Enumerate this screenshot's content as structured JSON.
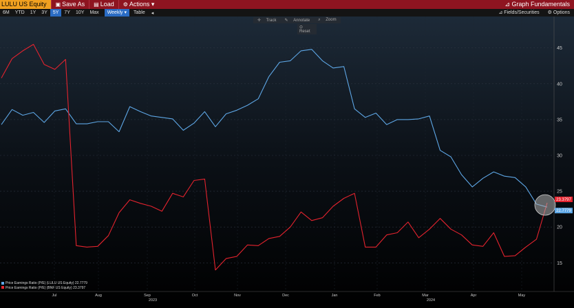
{
  "toolbar": {
    "ticker": "LULU US Equity",
    "save_as": "Save As",
    "load": "Load",
    "actions": "Actions",
    "graph_fundamentals": "Graph Fundamentals"
  },
  "range_bar": {
    "ranges": [
      "6M",
      "YTD",
      "1Y",
      "3Y",
      "5Y",
      "7Y",
      "10Y",
      "Max"
    ],
    "active_range": "5Y",
    "frequency": "Weekly",
    "table": "Table",
    "fields": "Fields/Securities",
    "options": "Options"
  },
  "tools": {
    "track": "Track",
    "annotate": "Annotate",
    "zoom": "Zoom",
    "reset": "Reset"
  },
  "colors": {
    "series_lulu": "#5ea7e6",
    "series_bnf": "#e5232e",
    "toolbar_bg": "#8e1420",
    "ticker_bg": "#f0a020",
    "active_tab": "#2a6cc4"
  },
  "chart_data": {
    "type": "line",
    "ylim": [
      11,
      49
    ],
    "yticks": [
      15,
      20,
      25,
      30,
      35,
      40,
      45
    ],
    "grid": true,
    "x_tick_labels": [
      {
        "label": "Jul",
        "year": ""
      },
      {
        "label": "Aug",
        "year": ""
      },
      {
        "label": "Sep",
        "year": "2023"
      },
      {
        "label": "Oct",
        "year": ""
      },
      {
        "label": "Nov",
        "year": ""
      },
      {
        "label": "Dec",
        "year": ""
      },
      {
        "label": "Jan",
        "year": ""
      },
      {
        "label": "Feb",
        "year": ""
      },
      {
        "label": "Mar",
        "year": "2024"
      },
      {
        "label": "Apr",
        "year": ""
      },
      {
        "label": "May",
        "year": ""
      }
    ],
    "series": [
      {
        "name": "Price Earnings Ratio (P/E) (LULU US Equity)",
        "last_value": "22.7779",
        "color": "#5ea7e6",
        "values": [
          34.3,
          36.4,
          35.6,
          36.0,
          34.6,
          36.2,
          36.5,
          34.4,
          34.4,
          34.7,
          34.7,
          33.3,
          36.8,
          36.1,
          35.5,
          35.3,
          35.1,
          33.5,
          34.5,
          36.1,
          34.0,
          35.8,
          36.3,
          37.0,
          37.9,
          41.0,
          43.0,
          43.2,
          44.6,
          44.8,
          43.2,
          42.2,
          42.4,
          36.5,
          35.3,
          35.9,
          34.3,
          35.0,
          35.0,
          35.1,
          35.5,
          30.7,
          29.8,
          27.3,
          25.6,
          26.8,
          27.7,
          27.1,
          26.9,
          25.6,
          23.2,
          22.78
        ]
      },
      {
        "name": "Price Earnings Ratio (P/E) (BNF US Equity)",
        "last_value": "23.3797",
        "color": "#e5232e",
        "values": [
          40.8,
          43.5,
          44.6,
          45.5,
          42.7,
          42.0,
          43.4,
          17.4,
          17.2,
          17.3,
          18.8,
          22.0,
          23.8,
          23.3,
          22.9,
          22.2,
          24.7,
          24.2,
          26.5,
          26.7,
          14.0,
          15.6,
          15.9,
          17.5,
          17.4,
          18.4,
          18.7,
          20.0,
          22.1,
          20.9,
          21.3,
          22.9,
          24.0,
          24.7,
          17.2,
          17.2,
          18.9,
          19.2,
          20.7,
          18.5,
          19.7,
          21.2,
          19.7,
          18.9,
          17.5,
          17.3,
          19.2,
          15.9,
          16.0,
          17.2,
          18.3,
          23.38
        ]
      }
    ]
  }
}
